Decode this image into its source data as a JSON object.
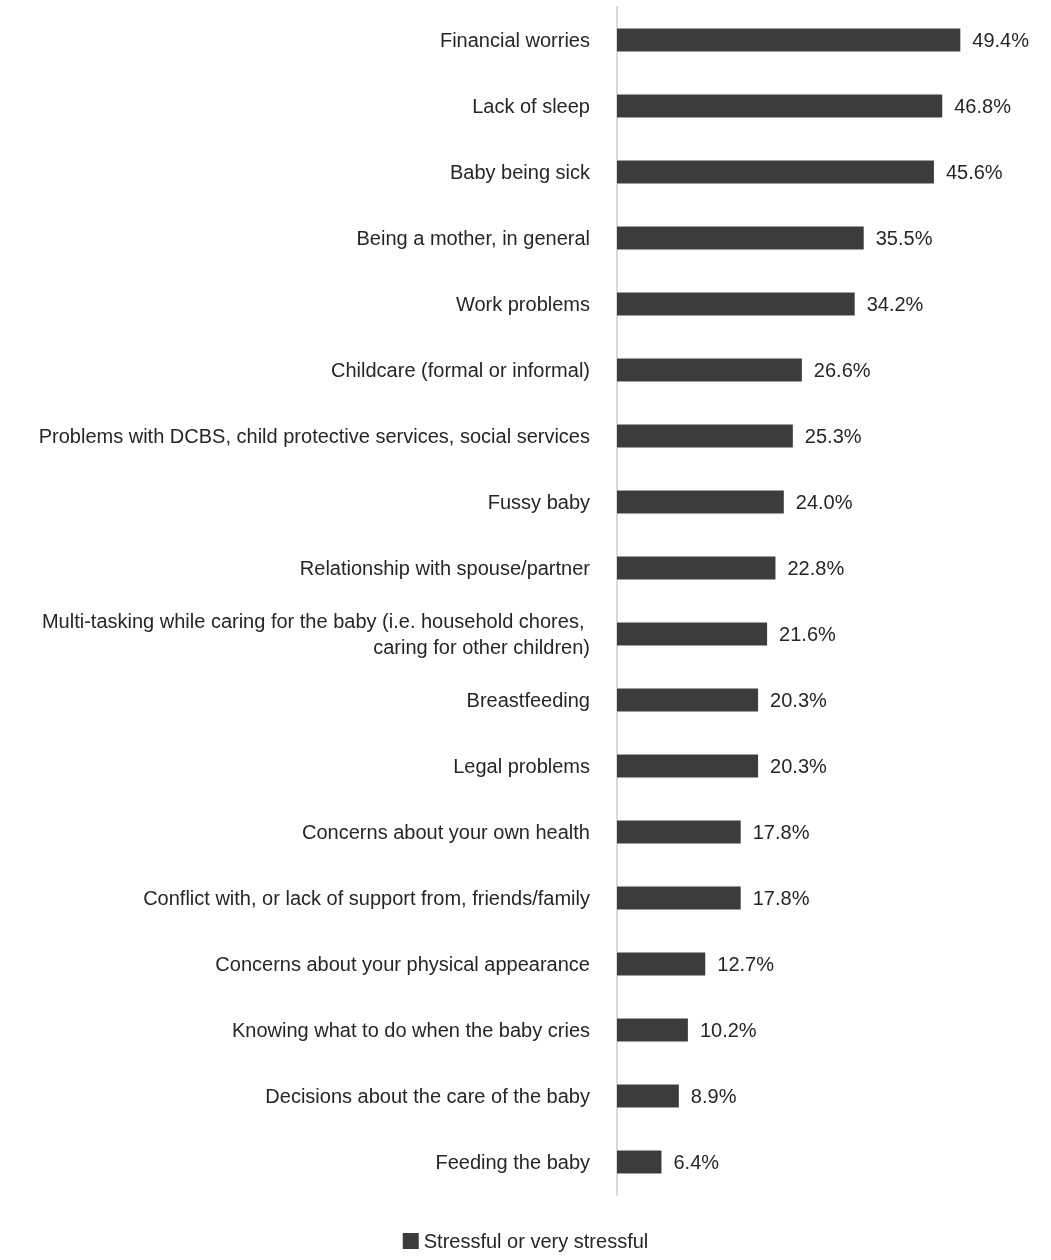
{
  "chart_data": {
    "type": "bar",
    "orientation": "horizontal",
    "categories": [
      "Financial worries",
      "Lack of sleep",
      "Baby being sick",
      "Being a mother, in general",
      "Work problems",
      "Childcare (formal or informal)",
      "Problems with DCBS, child protective services, social services",
      "Fussy baby",
      "Relationship with spouse/partner",
      "Multi-tasking while caring for the baby (i.e. household chores, caring for other children)",
      "Breastfeeding",
      "Legal problems",
      "Concerns about your own health",
      "Conflict with, or lack of support from, friends/family",
      "Concerns about your physical appearance",
      "Knowing what to do when the baby cries",
      "Decisions about the care of the baby",
      "Feeding the baby"
    ],
    "series": [
      {
        "name": "Stressful or very stressful",
        "color": "#3c3c3c",
        "values": [
          49.4,
          46.8,
          45.6,
          35.5,
          34.2,
          26.6,
          25.3,
          24.0,
          22.8,
          21.6,
          20.3,
          20.3,
          17.8,
          17.8,
          12.7,
          10.2,
          8.9,
          6.4
        ],
        "value_labels": [
          "49.4%",
          "46.8%",
          "45.6%",
          "35.5%",
          "34.2%",
          "26.6%",
          "25.3%",
          "24.0%",
          "22.8%",
          "21.6%",
          "20.3%",
          "20.3%",
          "17.8%",
          "17.8%",
          "12.7%",
          "10.2%",
          "8.9%",
          "6.4%"
        ]
      }
    ],
    "legend": "bottom",
    "grid": false
  }
}
